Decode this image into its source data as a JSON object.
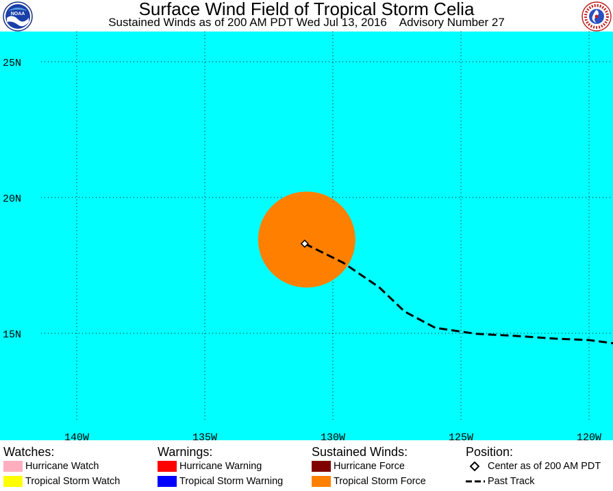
{
  "header": {
    "title": "Surface Wind Field of Tropical Storm Celia",
    "subtitle": "Sustained Winds as of 200 AM PDT Wed Jul 13, 2016    Advisory Number 27",
    "left_logo": "noaa-logo",
    "left_logo_text": "NOAA",
    "right_logo": "national-weather-service-logo"
  },
  "map": {
    "ocean_color": "#00ffff",
    "lat_labels": [
      "25N",
      "20N",
      "15N"
    ],
    "lon_labels": [
      "140W",
      "135W",
      "130W",
      "125W",
      "120W"
    ],
    "storm_center": {
      "lon": -131.1,
      "lat": 18.3
    },
    "tropical_storm_force_color": "#ff8000",
    "past_track": [
      {
        "lon": -131.1,
        "lat": 18.3
      },
      {
        "lon": -129.6,
        "lat": 17.6
      },
      {
        "lon": -128.2,
        "lat": 16.7
      },
      {
        "lon": -127.2,
        "lat": 15.8
      },
      {
        "lon": -126.0,
        "lat": 15.2
      },
      {
        "lon": -124.4,
        "lat": 14.98
      },
      {
        "lon": -122.8,
        "lat": 14.9
      },
      {
        "lon": -121.3,
        "lat": 14.8
      },
      {
        "lon": -120.0,
        "lat": 14.75
      },
      {
        "lon": -118.8,
        "lat": 14.6
      }
    ]
  },
  "legend": {
    "watches": {
      "heading": "Watches:",
      "items": [
        {
          "label": "Hurricane Watch",
          "color": "#ffaec0"
        },
        {
          "label": "Tropical Storm Watch",
          "color": "#ffff00"
        }
      ]
    },
    "warnings": {
      "heading": "Warnings:",
      "items": [
        {
          "label": "Hurricane Warning",
          "color": "#ff0000"
        },
        {
          "label": "Tropical Storm Warning",
          "color": "#0000ff"
        }
      ]
    },
    "winds": {
      "heading": "Sustained Winds:",
      "items": [
        {
          "label": "Hurricane Force",
          "color": "#800000"
        },
        {
          "label": "Tropical Storm Force",
          "color": "#ff8000"
        }
      ]
    },
    "position": {
      "heading": "Position:",
      "center_label": "Center as of 200 AM PDT",
      "track_label": "Past Track"
    }
  }
}
